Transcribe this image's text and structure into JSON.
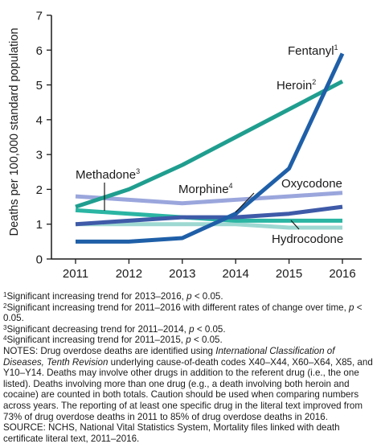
{
  "chart_data": {
    "type": "line",
    "ylabel": "Deaths per 100,000 standard population",
    "xlabel": "",
    "x": [
      2011,
      2012,
      2013,
      2014,
      2015,
      2016
    ],
    "x_tick_labels": [
      "2011",
      "2012",
      "2013",
      "2014",
      "2015",
      "2016"
    ],
    "ylim": [
      0,
      7
    ],
    "y_ticks": [
      0,
      1,
      2,
      3,
      4,
      5,
      6,
      7
    ],
    "y_tick_labels": [
      "0",
      "1",
      "2",
      "3",
      "4",
      "5",
      "6",
      "7"
    ],
    "grid": false,
    "series": [
      {
        "name": "Fentanyl",
        "marker": "1",
        "color": "#1f5fa8",
        "values": [
          0.5,
          0.5,
          0.6,
          1.3,
          2.6,
          5.9
        ]
      },
      {
        "name": "Heroin",
        "marker": "2",
        "color": "#1f9e8f",
        "values": [
          1.5,
          2.0,
          2.7,
          3.5,
          4.3,
          5.1
        ]
      },
      {
        "name": "Methadone",
        "marker": "3",
        "color": "#2bb5a3",
        "values": [
          1.4,
          1.3,
          1.2,
          1.1,
          1.1,
          1.1
        ]
      },
      {
        "name": "Morphine",
        "marker": "4",
        "color": "#3e5aa8",
        "values": [
          1.0,
          1.1,
          1.2,
          1.2,
          1.3,
          1.5
        ]
      },
      {
        "name": "Oxycodone",
        "marker": "",
        "color": "#9aa6dc",
        "values": [
          1.8,
          1.7,
          1.6,
          1.7,
          1.8,
          1.9
        ]
      },
      {
        "name": "Hydrocodone",
        "marker": "",
        "color": "#9ed8d2",
        "values": [
          1.0,
          1.0,
          1.0,
          1.0,
          0.9,
          0.9
        ]
      }
    ]
  },
  "footnotes": {
    "n1_mark": "1",
    "n1_text": "Significant increasing trend for 2013–2016,",
    "n1_p": "p",
    "n1_tail": "< 0.05.",
    "n2_mark": "2",
    "n2_text": "Significant increasing trend for 2011–2016 with different rates of change over time,",
    "n2_p": "p",
    "n2_tail": "< 0.05.",
    "n3_mark": "3",
    "n3_text": "Significant decreasing trend for 2011–2014,",
    "n3_p": "p",
    "n3_tail": "< 0.05.",
    "n4_mark": "4",
    "n4_text": "Significant increasing trend for 2011–2015,",
    "n4_p": "p",
    "n4_tail": "< 0.05.",
    "notes_1": "NOTES: Drug overdose deaths are identified using",
    "notes_icd": "International Classification of Diseases, Tenth Revision",
    "notes_2": "underlying cause-of-death codes X40–X44, X60–X64, X85, and Y10–Y14. Deaths may involve other drugs in addition to the referent drug (i.e., the one listed). Deaths involving more than one drug (e.g., a death involving both heroin and cocaine) are counted in both totals. Caution should be used when comparing numbers across years. The reporting of at least one specific drug in the literal text improved from 73% of drug overdose deaths in 2011 to 85% of drug overdose deaths in 2016.",
    "source": "SOURCE: NCHS, National Vital Statistics System, Mortality files linked with death certificate literal text, 2011–2016."
  }
}
